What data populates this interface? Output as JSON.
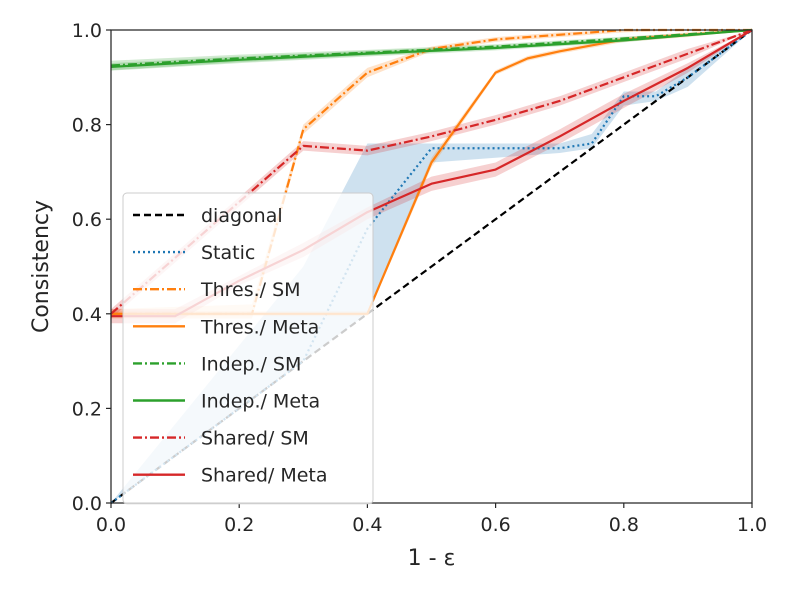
{
  "chart_data": {
    "type": "line",
    "title": "",
    "xlabel": "1 - ε",
    "ylabel": "Consistency",
    "xlim": [
      0,
      1
    ],
    "ylim": [
      0,
      1
    ],
    "xticks": [
      "0.0",
      "0.2",
      "0.4",
      "0.6",
      "0.8",
      "1.0"
    ],
    "yticks": [
      "0.0",
      "0.2",
      "0.4",
      "0.6",
      "0.8",
      "1.0"
    ],
    "legend_position": "lower-left",
    "series": [
      {
        "name": "diagonal",
        "color": "#000000",
        "style": "dashed",
        "x": [
          0,
          1
        ],
        "y": [
          0,
          1
        ]
      },
      {
        "name": "Static",
        "color": "#1f77b4",
        "style": "dotted",
        "x": [
          0,
          0.3,
          0.4,
          0.5,
          0.6,
          0.7,
          0.75,
          0.8,
          0.85,
          0.9,
          1.0
        ],
        "y": [
          0,
          0.3,
          0.58,
          0.75,
          0.75,
          0.75,
          0.76,
          0.86,
          0.86,
          0.9,
          1.0
        ],
        "band_upper": [
          0,
          0.5,
          0.76,
          0.76,
          0.76,
          0.76,
          0.78,
          0.87,
          0.87,
          0.92,
          1.0
        ],
        "band_lower": [
          0,
          0.3,
          0.4,
          0.72,
          0.73,
          0.74,
          0.75,
          0.84,
          0.85,
          0.88,
          1.0
        ]
      },
      {
        "name": "Thres./ SM",
        "color": "#ff7f0e",
        "style": "dashdot",
        "x": [
          0,
          0.22,
          0.3,
          0.4,
          0.5,
          0.6,
          0.7,
          0.8,
          0.9,
          1.0
        ],
        "y": [
          0.4,
          0.4,
          0.79,
          0.91,
          0.96,
          0.98,
          0.99,
          1.0,
          1.0,
          1.0
        ],
        "band_upper": [
          0.41,
          0.42,
          0.8,
          0.92,
          0.965,
          0.985,
          0.995,
          1.0,
          1.0,
          1.0
        ],
        "band_lower": [
          0.39,
          0.39,
          0.78,
          0.9,
          0.955,
          0.975,
          0.985,
          0.995,
          1.0,
          1.0
        ]
      },
      {
        "name": "Thres./ Meta",
        "color": "#ff7f0e",
        "style": "solid",
        "x": [
          0,
          0.4,
          0.5,
          0.6,
          0.65,
          0.7,
          0.8,
          0.9,
          1.0
        ],
        "y": [
          0.4,
          0.4,
          0.72,
          0.91,
          0.94,
          0.955,
          0.98,
          0.99,
          1.0
        ],
        "band_upper": [
          0.405,
          0.405,
          0.73,
          0.915,
          0.945,
          0.96,
          0.985,
          0.995,
          1.0
        ],
        "band_lower": [
          0.395,
          0.395,
          0.71,
          0.905,
          0.935,
          0.95,
          0.975,
          0.985,
          1.0
        ]
      },
      {
        "name": "Indep./ SM",
        "color": "#2ca02c",
        "style": "dashdot",
        "x": [
          0,
          0.2,
          0.4,
          0.6,
          0.8,
          1.0
        ],
        "y": [
          0.925,
          0.94,
          0.952,
          0.965,
          0.982,
          1.0
        ],
        "band_upper": [
          0.935,
          0.948,
          0.958,
          0.97,
          0.986,
          1.0
        ],
        "band_lower": [
          0.915,
          0.932,
          0.946,
          0.96,
          0.978,
          1.0
        ]
      },
      {
        "name": "Indep./ Meta",
        "color": "#2ca02c",
        "style": "solid",
        "x": [
          0,
          0.2,
          0.4,
          0.6,
          0.8,
          1.0
        ],
        "y": [
          0.922,
          0.937,
          0.95,
          0.962,
          0.978,
          1.0
        ],
        "band_upper": [
          0.93,
          0.944,
          0.956,
          0.967,
          0.982,
          1.0
        ],
        "band_lower": [
          0.914,
          0.93,
          0.944,
          0.957,
          0.974,
          1.0
        ]
      },
      {
        "name": "Shared/ SM",
        "color": "#d62728",
        "style": "dashdot",
        "x": [
          0,
          0.3,
          0.4,
          0.5,
          0.6,
          0.65,
          0.7,
          0.8,
          0.9,
          1.0
        ],
        "y": [
          0.4,
          0.755,
          0.745,
          0.775,
          0.81,
          0.83,
          0.85,
          0.9,
          0.95,
          1.0
        ],
        "band_upper": [
          0.41,
          0.765,
          0.755,
          0.785,
          0.82,
          0.84,
          0.86,
          0.91,
          0.96,
          1.0
        ],
        "band_lower": [
          0.39,
          0.745,
          0.735,
          0.765,
          0.8,
          0.82,
          0.84,
          0.89,
          0.94,
          1.0
        ]
      },
      {
        "name": "Shared/ Meta",
        "color": "#d62728",
        "style": "solid",
        "x": [
          0,
          0.1,
          0.2,
          0.3,
          0.4,
          0.5,
          0.6,
          0.65,
          0.7,
          0.8,
          0.9,
          1.0
        ],
        "y": [
          0.395,
          0.395,
          0.47,
          0.535,
          0.615,
          0.675,
          0.705,
          0.74,
          0.775,
          0.85,
          0.92,
          1.0
        ],
        "band_upper": [
          0.41,
          0.41,
          0.48,
          0.55,
          0.625,
          0.69,
          0.72,
          0.755,
          0.79,
          0.865,
          0.93,
          1.0
        ],
        "band_lower": [
          0.38,
          0.38,
          0.46,
          0.52,
          0.6,
          0.66,
          0.69,
          0.725,
          0.76,
          0.835,
          0.91,
          1.0
        ]
      }
    ]
  }
}
